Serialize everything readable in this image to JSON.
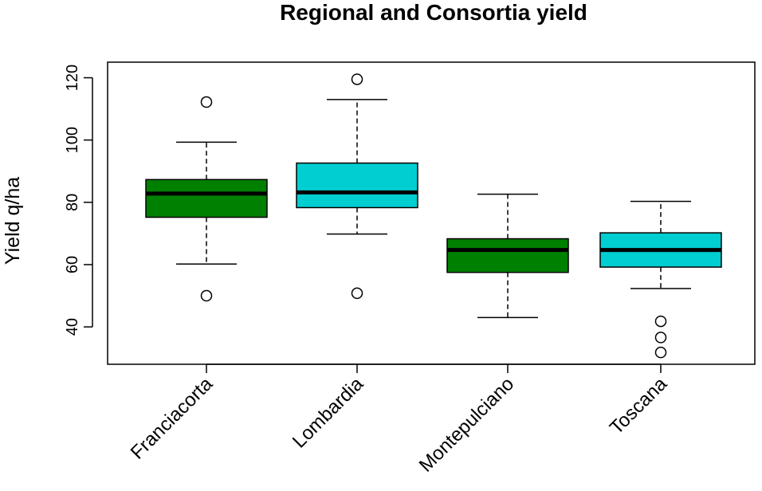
{
  "chart_data": {
    "type": "boxplot",
    "title": "Regional and Consortia yield",
    "xlabel": "",
    "ylabel": "Yield q/ha",
    "ylim": [
      28,
      125
    ],
    "yticks": [
      40,
      60,
      80,
      100,
      120
    ],
    "grid": false,
    "categories": [
      "Franciacorta",
      "Lombardia",
      "Montepulciano",
      "Toscana"
    ],
    "colors": [
      "#008000",
      "#00CED1",
      "#008000",
      "#00CED1"
    ],
    "boxes": [
      {
        "name": "Franciacorta",
        "whisker_low": 60.2,
        "q1": 75.2,
        "median": 82.8,
        "q3": 87.3,
        "whisker_high": 99.3,
        "outliers": [
          112.2,
          50.0
        ]
      },
      {
        "name": "Lombardia",
        "whisker_low": 69.8,
        "q1": 78.3,
        "median": 83.2,
        "q3": 92.6,
        "whisker_high": 113.0,
        "outliers": [
          119.5,
          50.8
        ]
      },
      {
        "name": "Montepulciano",
        "whisker_low": 43.0,
        "q1": 57.5,
        "median": 64.7,
        "q3": 68.3,
        "whisker_high": 82.6,
        "outliers": []
      },
      {
        "name": "Toscana",
        "whisker_low": 52.3,
        "q1": 59.2,
        "median": 64.7,
        "q3": 70.2,
        "whisker_high": 80.3,
        "outliers": [
          41.8,
          36.6,
          31.8
        ]
      }
    ]
  }
}
